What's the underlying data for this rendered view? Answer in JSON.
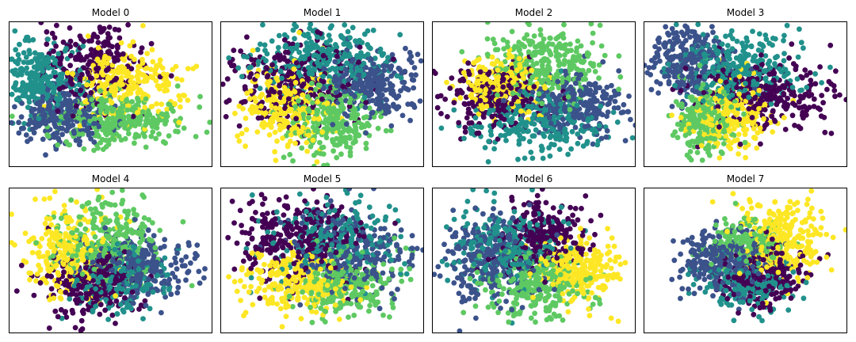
{
  "chart_data": {
    "type": "scatter",
    "axis_ticks": "hidden",
    "grid": false,
    "legend": "none",
    "xlim": [
      -3.6,
      3.9
    ],
    "ylim": [
      -3.0,
      3.0
    ],
    "palette": {
      "dark_purple": "#440154",
      "blue": "#3b528b",
      "teal": "#21918c",
      "green": "#5ec962",
      "yellow": "#fde725"
    },
    "panels": [
      {
        "title": "Model 0",
        "clusters": [
          {
            "color": "#21918c",
            "cx": -2.4,
            "cy": 0.6,
            "sx": 0.8,
            "sy": 0.75,
            "n": 260
          },
          {
            "color": "#3b528b",
            "cx": -1.7,
            "cy": -0.9,
            "sx": 0.9,
            "sy": 0.6,
            "n": 260
          },
          {
            "color": "#440154",
            "cx": -0.6,
            "cy": 1.3,
            "sx": 0.95,
            "sy": 0.9,
            "n": 230
          },
          {
            "color": "#5ec962",
            "cx": 0.6,
            "cy": -1.0,
            "sx": 1.3,
            "sy": 0.55,
            "n": 300
          },
          {
            "color": "#fde725",
            "cx": 0.9,
            "cy": 0.5,
            "sx": 1.0,
            "sy": 0.7,
            "n": 260
          }
        ]
      },
      {
        "title": "Model 1",
        "clusters": [
          {
            "color": "#21918c",
            "cx": 0.1,
            "cy": 1.4,
            "sx": 1.3,
            "sy": 0.75,
            "n": 300
          },
          {
            "color": "#3b528b",
            "cx": 1.9,
            "cy": 0.4,
            "sx": 0.85,
            "sy": 0.7,
            "n": 260
          },
          {
            "color": "#440154",
            "cx": -0.9,
            "cy": 0.5,
            "sx": 1.2,
            "sy": 0.95,
            "n": 260
          },
          {
            "color": "#fde725",
            "cx": -1.2,
            "cy": -0.5,
            "sx": 0.85,
            "sy": 0.8,
            "n": 270
          },
          {
            "color": "#5ec962",
            "cx": 0.5,
            "cy": -1.0,
            "sx": 0.8,
            "sy": 0.75,
            "n": 260
          }
        ]
      },
      {
        "title": "Model 2",
        "clusters": [
          {
            "color": "#5ec962",
            "cx": 0.6,
            "cy": 1.3,
            "sx": 1.0,
            "sy": 0.75,
            "n": 300
          },
          {
            "color": "#fde725",
            "cx": -1.1,
            "cy": 0.4,
            "sx": 0.8,
            "sy": 0.65,
            "n": 230
          },
          {
            "color": "#440154",
            "cx": -1.4,
            "cy": -0.1,
            "sx": 0.95,
            "sy": 0.7,
            "n": 240
          },
          {
            "color": "#3b528b",
            "cx": 1.7,
            "cy": -0.4,
            "sx": 1.0,
            "sy": 0.6,
            "n": 260
          },
          {
            "color": "#21918c",
            "cx": 0.3,
            "cy": -1.1,
            "sx": 1.2,
            "sy": 0.6,
            "n": 260
          }
        ]
      },
      {
        "title": "Model 3",
        "clusters": [
          {
            "color": "#3b528b",
            "cx": -2.0,
            "cy": 1.3,
            "sx": 0.75,
            "sy": 0.8,
            "n": 260
          },
          {
            "color": "#21918c",
            "cx": 0.0,
            "cy": 1.2,
            "sx": 1.2,
            "sy": 0.75,
            "n": 300
          },
          {
            "color": "#440154",
            "cx": 0.9,
            "cy": 0.0,
            "sx": 1.3,
            "sy": 0.7,
            "n": 280
          },
          {
            "color": "#5ec962",
            "cx": -1.3,
            "cy": -1.0,
            "sx": 0.55,
            "sy": 0.8,
            "n": 230
          },
          {
            "color": "#fde725",
            "cx": -0.4,
            "cy": -0.9,
            "sx": 0.7,
            "sy": 0.75,
            "n": 230
          }
        ]
      },
      {
        "title": "Model 4",
        "clusters": [
          {
            "color": "#fde725",
            "cx": -1.4,
            "cy": 0.4,
            "sx": 0.75,
            "sy": 0.9,
            "n": 270
          },
          {
            "color": "#5ec962",
            "cx": 0.0,
            "cy": 0.9,
            "sx": 0.9,
            "sy": 0.9,
            "n": 260
          },
          {
            "color": "#3b528b",
            "cx": 1.1,
            "cy": -0.2,
            "sx": 0.95,
            "sy": 0.7,
            "n": 260
          },
          {
            "color": "#440154",
            "cx": -0.5,
            "cy": -0.9,
            "sx": 0.85,
            "sy": 0.65,
            "n": 260
          },
          {
            "color": "#21918c",
            "cx": 0.4,
            "cy": -0.7,
            "sx": 0.9,
            "sy": 0.7,
            "n": 220
          }
        ]
      },
      {
        "title": "Model 5",
        "clusters": [
          {
            "color": "#440154",
            "cx": -0.8,
            "cy": 0.8,
            "sx": 1.1,
            "sy": 0.9,
            "n": 300
          },
          {
            "color": "#21918c",
            "cx": 0.5,
            "cy": 0.9,
            "sx": 1.2,
            "sy": 0.95,
            "n": 240
          },
          {
            "color": "#3b528b",
            "cx": 1.3,
            "cy": 0.3,
            "sx": 1.0,
            "sy": 0.9,
            "n": 240
          },
          {
            "color": "#fde725",
            "cx": -0.7,
            "cy": -0.9,
            "sx": 1.0,
            "sy": 0.6,
            "n": 270
          },
          {
            "color": "#5ec962",
            "cx": 0.9,
            "cy": -0.9,
            "sx": 1.0,
            "sy": 0.6,
            "n": 260
          }
        ]
      },
      {
        "title": "Model 6",
        "clusters": [
          {
            "color": "#3b528b",
            "cx": -1.5,
            "cy": 0.2,
            "sx": 0.9,
            "sy": 0.9,
            "n": 270
          },
          {
            "color": "#21918c",
            "cx": -0.9,
            "cy": 0.6,
            "sx": 1.0,
            "sy": 0.9,
            "n": 240
          },
          {
            "color": "#440154",
            "cx": 0.5,
            "cy": 1.0,
            "sx": 0.8,
            "sy": 0.8,
            "n": 240
          },
          {
            "color": "#fde725",
            "cx": 1.7,
            "cy": -0.3,
            "sx": 0.8,
            "sy": 0.65,
            "n": 260
          },
          {
            "color": "#5ec962",
            "cx": 0.1,
            "cy": -1.0,
            "sx": 0.95,
            "sy": 0.7,
            "n": 260
          }
        ]
      },
      {
        "title": "Model 7",
        "clusters": [
          {
            "color": "#fde725",
            "cx": 1.5,
            "cy": 1.0,
            "sx": 0.8,
            "sy": 0.8,
            "n": 270
          },
          {
            "color": "#5ec962",
            "cx": 0.3,
            "cy": 0.8,
            "sx": 0.75,
            "sy": 0.45,
            "n": 160
          },
          {
            "color": "#3b528b",
            "cx": -0.6,
            "cy": 0.0,
            "sx": 0.8,
            "sy": 0.7,
            "n": 280
          },
          {
            "color": "#440154",
            "cx": 0.7,
            "cy": -0.6,
            "sx": 0.75,
            "sy": 0.65,
            "n": 250
          },
          {
            "color": "#21918c",
            "cx": 0.2,
            "cy": -0.9,
            "sx": 0.8,
            "sy": 0.6,
            "n": 200
          }
        ]
      }
    ]
  }
}
